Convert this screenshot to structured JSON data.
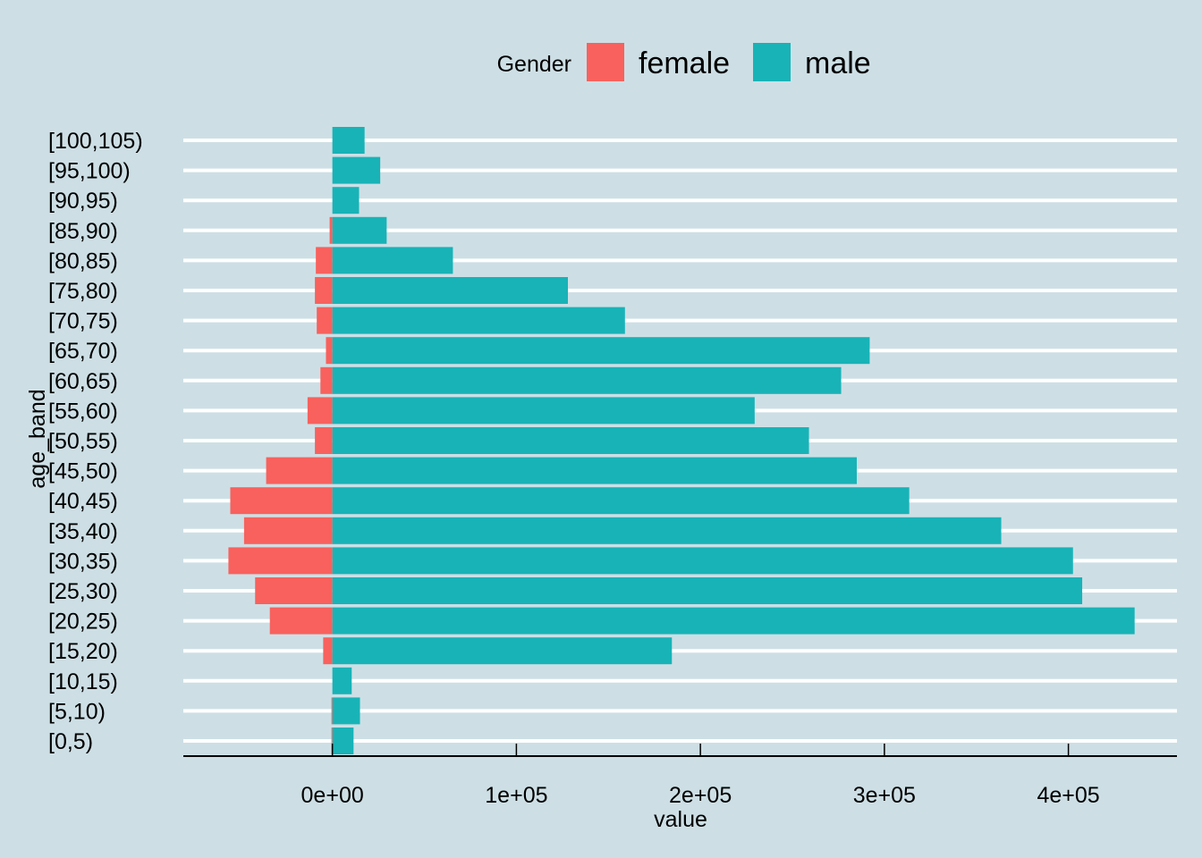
{
  "chart_data": {
    "type": "bar",
    "orientation": "horizontal",
    "stacking": "diverging",
    "xlabel": "value",
    "ylabel": "age_band",
    "xlim": [
      -81000,
      459000
    ],
    "x_ticks": [
      0,
      100000,
      200000,
      300000,
      400000
    ],
    "x_tick_labels": [
      "0e+00",
      "1e+05",
      "2e+05",
      "3e+05",
      "4e+05"
    ],
    "categories": [
      "[0,5)",
      "[5,10)",
      "[10,15)",
      "[15,20)",
      "[20,25)",
      "[25,30)",
      "[30,35)",
      "[35,40)",
      "[40,45)",
      "[45,50)",
      "[50,55)",
      "[55,60)",
      "[60,65)",
      "[65,70)",
      "[70,75)",
      "[75,80)",
      "[80,85)",
      "[85,90)",
      "[90,95)",
      "[95,100)",
      "[100,105)"
    ],
    "series": [
      {
        "name": "female",
        "color": "#f8615d",
        "values": [
          -500,
          -500,
          0,
          -5000,
          -34000,
          -42000,
          -56500,
          -48000,
          -55500,
          -36000,
          -9500,
          -13500,
          -6500,
          -3500,
          -8500,
          -9500,
          -9000,
          -1500,
          0,
          0,
          0
        ]
      },
      {
        "name": "male",
        "color": "#18b3b7",
        "values": [
          11500,
          15000,
          10500,
          184500,
          436000,
          407500,
          402500,
          363500,
          313500,
          285000,
          259000,
          229500,
          276500,
          292000,
          159000,
          128000,
          65500,
          29500,
          14500,
          26000,
          17500
        ]
      }
    ],
    "legend": {
      "title": "Gender",
      "position": "top"
    },
    "grid": {
      "vertical": false,
      "horizontal": true
    }
  }
}
